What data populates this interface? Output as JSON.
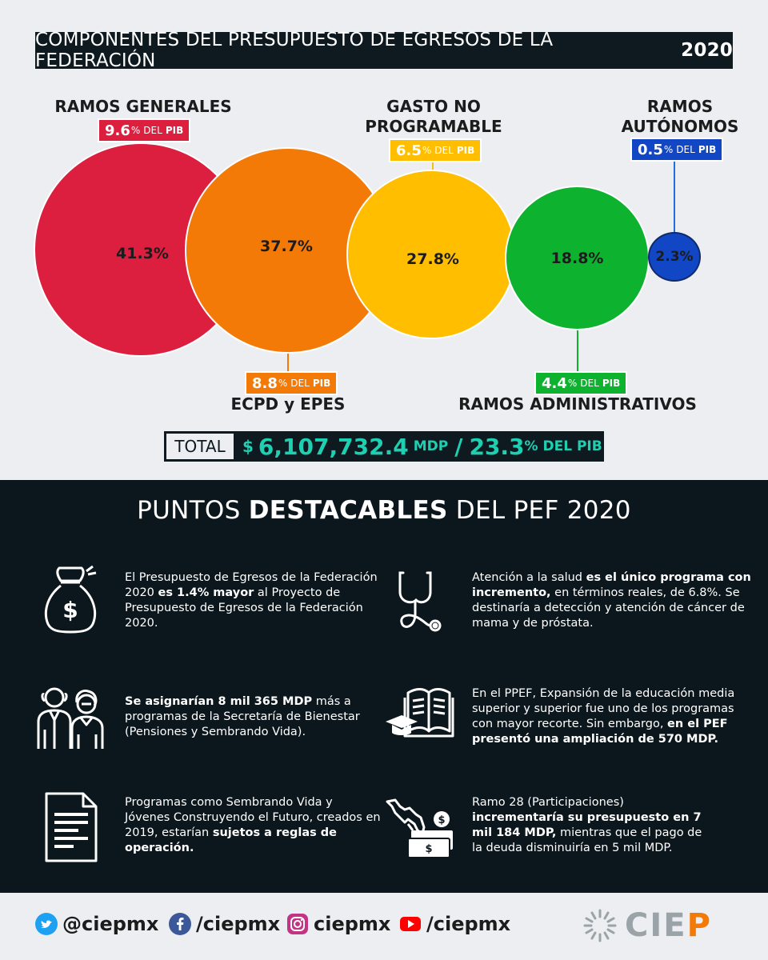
{
  "header": {
    "title_prefix": "COMPONENTES DEL PRESUPUESTO DE EGRESOS DE LA FEDERACIÓN",
    "title_year": "2020"
  },
  "components": [
    {
      "name": "RAMOS GENERALES",
      "share": "41.3%",
      "pib_pct": "9.6",
      "color": "#dc1e3f"
    },
    {
      "name": "ECPD y EPES",
      "share": "37.7%",
      "pib_pct": "8.8",
      "color": "#f47a07"
    },
    {
      "name_line1": "GASTO NO",
      "name_line2": "PROGRAMABLE",
      "share": "27.8%",
      "pib_pct": "6.5",
      "color": "#ffbe00"
    },
    {
      "name": "RAMOS ADMINISTRATIVOS",
      "share": "18.8%",
      "pib_pct": "4.4",
      "color": "#0db32e"
    },
    {
      "name_line1": "RAMOS",
      "name_line2": "AUTÓNOMOS",
      "share": "2.3%",
      "pib_pct": "0.5",
      "color": "#1146c5"
    }
  ],
  "pib_labels": {
    "percent": "%",
    "del": "DEL",
    "pib": "PIB"
  },
  "total": {
    "label": "TOTAL",
    "currency": "$",
    "amount": "6,107,732.4",
    "unit": "MDP",
    "slash": "/",
    "pib_pct": "23.3",
    "pib_suffix": "% DEL PIB"
  },
  "highlights": {
    "title_prefix": "PUNTOS",
    "title_bold": "DESTACABLES",
    "title_suffix": "DEL PEF 2020",
    "items": [
      {
        "icon": "money-bag-icon",
        "t1": "El Presupuesto de Egresos de la Federación 2020 ",
        "b1": "es 1.4% mayor",
        "t2": " al Proyecto de Presupuesto de Egresos de la Federación 2020."
      },
      {
        "icon": "stethoscope-icon",
        "t1": "Atención a la salud ",
        "b1": "es el único programa con incremento,",
        "t2": " en términos reales, de 6.8%. Se destinaría a detección y atención de cáncer de mama y de próstata."
      },
      {
        "icon": "elderly-people-icon",
        "t1": "",
        "b1": "Se asignarían 8 mil 365 MDP",
        "t2": " más a programas de la Secretaría de Bienestar (Pensiones y Sembrando Vida)."
      },
      {
        "icon": "education-book-icon",
        "t1": "En el PPEF, Expansión de la educación media superior y superior fue uno de los programas con mayor recorte. Sin embargo, ",
        "b1": "en el PEF presentó una ampliación de 570 MDP.",
        "t2": ""
      },
      {
        "icon": "document-icon",
        "t1": "Programas como Sembrando Vida y Jóvenes Construyendo el Futuro, creados en 2019, estarían ",
        "b1": "sujetos a reglas de operación.",
        "t2": ""
      },
      {
        "icon": "mexico-money-icon",
        "t1": "Ramo 28 (Participaciones) ",
        "b1": "incrementaría su presupuesto en 7 mil 184 MDP,",
        "t2": " mientras que el pago de la deuda disminuiría en 5 mil MDP."
      }
    ]
  },
  "footer": {
    "twitter": "@ciepmx",
    "facebook": "/ciepmx",
    "instagram": "ciepmx",
    "youtube": "/ciepmx",
    "logo_text": "CIEP",
    "colors": {
      "twitter": "#1da1f2",
      "facebook": "#3b5998",
      "instagram": "#c13584",
      "youtube": "#ff0000",
      "logo_gray": "#9aa3a8",
      "logo_orange": "#f47a07"
    }
  }
}
